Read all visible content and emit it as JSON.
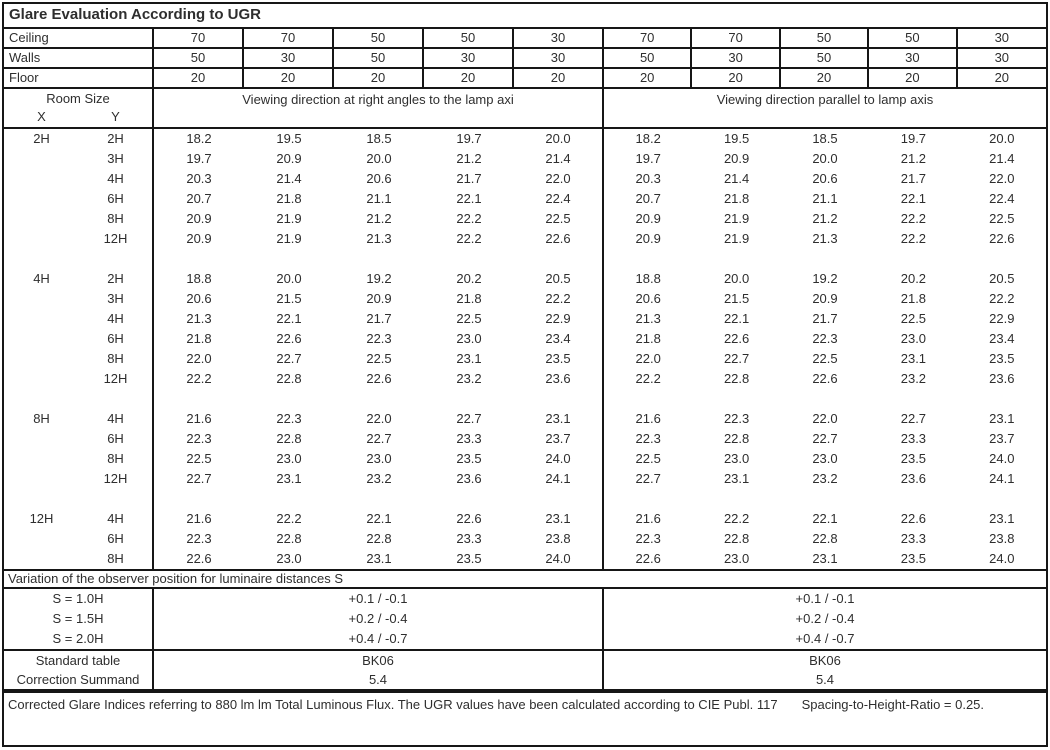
{
  "title": "Glare Evaluation According to UGR",
  "surface_rows": [
    {
      "label": "Ceiling",
      "values": [
        "70",
        "70",
        "50",
        "50",
        "30",
        "70",
        "70",
        "50",
        "50",
        "30"
      ]
    },
    {
      "label": "Walls",
      "values": [
        "50",
        "30",
        "50",
        "30",
        "30",
        "50",
        "30",
        "50",
        "30",
        "30"
      ]
    },
    {
      "label": "Floor",
      "values": [
        "20",
        "20",
        "20",
        "20",
        "20",
        "20",
        "20",
        "20",
        "20",
        "20"
      ]
    }
  ],
  "room_size": {
    "label": "Room Size",
    "x_label": "X",
    "y_label": "Y"
  },
  "sections": [
    {
      "header": "Viewing direction at right angles to the lamp axi"
    },
    {
      "header": "Viewing direction parallel to lamp axis"
    }
  ],
  "blocks": [
    {
      "x": "2H",
      "rows": [
        {
          "y": "2H",
          "left": [
            "18.2",
            "19.5",
            "18.5",
            "19.7",
            "20.0"
          ],
          "right": [
            "18.2",
            "19.5",
            "18.5",
            "19.7",
            "20.0"
          ]
        },
        {
          "y": "3H",
          "left": [
            "19.7",
            "20.9",
            "20.0",
            "21.2",
            "21.4"
          ],
          "right": [
            "19.7",
            "20.9",
            "20.0",
            "21.2",
            "21.4"
          ]
        },
        {
          "y": "4H",
          "left": [
            "20.3",
            "21.4",
            "20.6",
            "21.7",
            "22.0"
          ],
          "right": [
            "20.3",
            "21.4",
            "20.6",
            "21.7",
            "22.0"
          ]
        },
        {
          "y": "6H",
          "left": [
            "20.7",
            "21.8",
            "21.1",
            "22.1",
            "22.4"
          ],
          "right": [
            "20.7",
            "21.8",
            "21.1",
            "22.1",
            "22.4"
          ]
        },
        {
          "y": "8H",
          "left": [
            "20.9",
            "21.9",
            "21.2",
            "22.2",
            "22.5"
          ],
          "right": [
            "20.9",
            "21.9",
            "21.2",
            "22.2",
            "22.5"
          ]
        },
        {
          "y": "12H",
          "left": [
            "20.9",
            "21.9",
            "21.3",
            "22.2",
            "22.6"
          ],
          "right": [
            "20.9",
            "21.9",
            "21.3",
            "22.2",
            "22.6"
          ]
        }
      ]
    },
    {
      "x": "4H",
      "rows": [
        {
          "y": "2H",
          "left": [
            "18.8",
            "20.0",
            "19.2",
            "20.2",
            "20.5"
          ],
          "right": [
            "18.8",
            "20.0",
            "19.2",
            "20.2",
            "20.5"
          ]
        },
        {
          "y": "3H",
          "left": [
            "20.6",
            "21.5",
            "20.9",
            "21.8",
            "22.2"
          ],
          "right": [
            "20.6",
            "21.5",
            "20.9",
            "21.8",
            "22.2"
          ]
        },
        {
          "y": "4H",
          "left": [
            "21.3",
            "22.1",
            "21.7",
            "22.5",
            "22.9"
          ],
          "right": [
            "21.3",
            "22.1",
            "21.7",
            "22.5",
            "22.9"
          ]
        },
        {
          "y": "6H",
          "left": [
            "21.8",
            "22.6",
            "22.3",
            "23.0",
            "23.4"
          ],
          "right": [
            "21.8",
            "22.6",
            "22.3",
            "23.0",
            "23.4"
          ]
        },
        {
          "y": "8H",
          "left": [
            "22.0",
            "22.7",
            "22.5",
            "23.1",
            "23.5"
          ],
          "right": [
            "22.0",
            "22.7",
            "22.5",
            "23.1",
            "23.5"
          ]
        },
        {
          "y": "12H",
          "left": [
            "22.2",
            "22.8",
            "22.6",
            "23.2",
            "23.6"
          ],
          "right": [
            "22.2",
            "22.8",
            "22.6",
            "23.2",
            "23.6"
          ]
        }
      ]
    },
    {
      "x": "8H",
      "rows": [
        {
          "y": "4H",
          "left": [
            "21.6",
            "22.3",
            "22.0",
            "22.7",
            "23.1"
          ],
          "right": [
            "21.6",
            "22.3",
            "22.0",
            "22.7",
            "23.1"
          ]
        },
        {
          "y": "6H",
          "left": [
            "22.3",
            "22.8",
            "22.7",
            "23.3",
            "23.7"
          ],
          "right": [
            "22.3",
            "22.8",
            "22.7",
            "23.3",
            "23.7"
          ]
        },
        {
          "y": "8H",
          "left": [
            "22.5",
            "23.0",
            "23.0",
            "23.5",
            "24.0"
          ],
          "right": [
            "22.5",
            "23.0",
            "23.0",
            "23.5",
            "24.0"
          ]
        },
        {
          "y": "12H",
          "left": [
            "22.7",
            "23.1",
            "23.2",
            "23.6",
            "24.1"
          ],
          "right": [
            "22.7",
            "23.1",
            "23.2",
            "23.6",
            "24.1"
          ]
        }
      ]
    },
    {
      "x": "12H",
      "rows": [
        {
          "y": "4H",
          "left": [
            "21.6",
            "22.2",
            "22.1",
            "22.6",
            "23.1"
          ],
          "right": [
            "21.6",
            "22.2",
            "22.1",
            "22.6",
            "23.1"
          ]
        },
        {
          "y": "6H",
          "left": [
            "22.3",
            "22.8",
            "22.8",
            "23.3",
            "23.8"
          ],
          "right": [
            "22.3",
            "22.8",
            "22.8",
            "23.3",
            "23.8"
          ]
        },
        {
          "y": "8H",
          "left": [
            "22.6",
            "23.0",
            "23.1",
            "23.5",
            "24.0"
          ],
          "right": [
            "22.6",
            "23.0",
            "23.1",
            "23.5",
            "24.0"
          ]
        }
      ]
    }
  ],
  "variation": {
    "header": "Variation of the observer position for luminaire distances S",
    "rows": [
      {
        "label": "S = 1.0H",
        "left": "+0.1 / -0.1",
        "right": "+0.1 / -0.1"
      },
      {
        "label": "S = 1.5H",
        "left": "+0.2 / -0.4",
        "right": "+0.2 / -0.4"
      },
      {
        "label": "S = 2.0H",
        "left": "+0.4 / -0.7",
        "right": "+0.4 / -0.7"
      }
    ]
  },
  "summary_rows": [
    {
      "label": "Standard table",
      "left": "BK06",
      "right": "BK06"
    },
    {
      "label": "Correction Summand",
      "left": "5.4",
      "right": "5.4"
    }
  ],
  "footer": {
    "text": "Corrected Glare Indices referring to 880 lm lm Total Luminous Flux. The UGR values have been calculated according to CIE Publ. 117",
    "ratio": "Spacing-to-Height-Ratio = 0.25."
  }
}
